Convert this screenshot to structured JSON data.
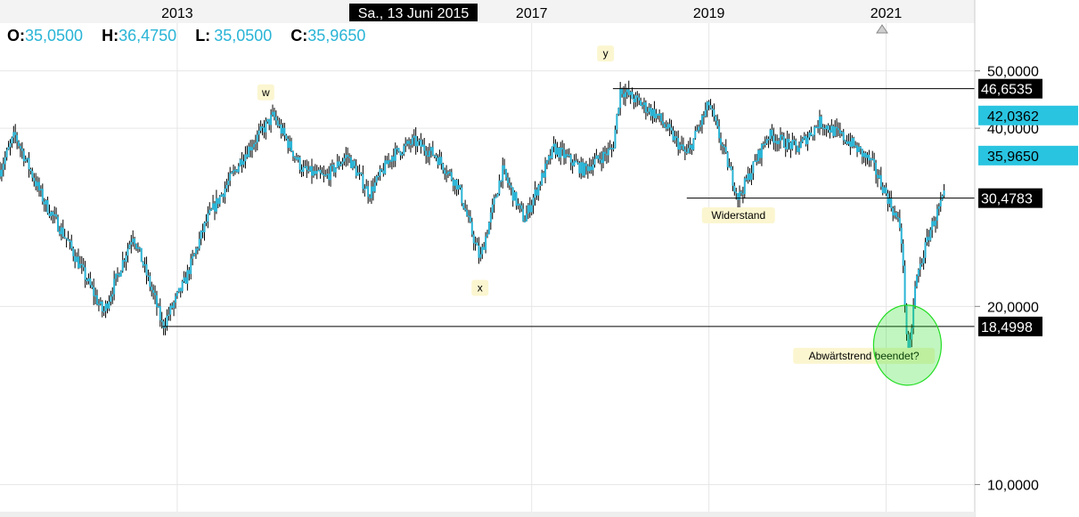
{
  "chart_data": {
    "type": "ohlc",
    "scale": "log",
    "ylim": [
      9.0,
      60.0
    ],
    "xlim": [
      "2011-01",
      "2021-12"
    ],
    "x_ticks": [
      "2013",
      "2017",
      "2019",
      "2021"
    ],
    "y_ticks": [
      "50,0000",
      "40,0000",
      "20,0000",
      "10,0000"
    ],
    "cursor_date_label": "Sa., 13 Juni 2015",
    "ohlc": {
      "o_label": "O:",
      "o_value": "35,0500",
      "h_label": "H:",
      "h_value": "36,4750",
      "l_label": "L:",
      "l_value": "35,0500",
      "c_label": "C:",
      "c_value": "35,9650"
    },
    "bar_color": "#29b4d6",
    "wick_color": "#000000",
    "price_path": [
      [
        "2011-01",
        34
      ],
      [
        "2011-03",
        39
      ],
      [
        "2011-07",
        30
      ],
      [
        "2011-10",
        26
      ],
      [
        "2012-03",
        19.5
      ],
      [
        "2012-07",
        26.5
      ],
      [
        "2012-10",
        20.5
      ],
      [
        "2012-11",
        18.5
      ],
      [
        "2013-02",
        22
      ],
      [
        "2013-05",
        28
      ],
      [
        "2013-10",
        36
      ],
      [
        "2014-02",
        42
      ],
      [
        "2014-06",
        34
      ],
      [
        "2014-09",
        33
      ],
      [
        "2014-12",
        36
      ],
      [
        "2015-03",
        31
      ],
      [
        "2015-06",
        35.9
      ],
      [
        "2015-09",
        38
      ],
      [
        "2015-12",
        36
      ],
      [
        "2016-03",
        32
      ],
      [
        "2016-06",
        24
      ],
      [
        "2016-09",
        34
      ],
      [
        "2016-12",
        28
      ],
      [
        "2017-04",
        37
      ],
      [
        "2017-08",
        34
      ],
      [
        "2017-12",
        37
      ],
      [
        "2018-01",
        46.6
      ],
      [
        "2018-06",
        42
      ],
      [
        "2018-10",
        36
      ],
      [
        "2019-01",
        44
      ],
      [
        "2019-05",
        30.5
      ],
      [
        "2019-09",
        39
      ],
      [
        "2020-01",
        37
      ],
      [
        "2020-04",
        41
      ],
      [
        "2020-08",
        38
      ],
      [
        "2020-11",
        35
      ],
      [
        "2021-01",
        31
      ],
      [
        "2021-03",
        27
      ],
      [
        "2021-04",
        16
      ],
      [
        "2021-05",
        22
      ],
      [
        "2021-07",
        27
      ],
      [
        "2021-09",
        31
      ]
    ],
    "levels": [
      {
        "id": "level-46",
        "value": 46.6535,
        "label": "46,6535",
        "from": "2017-12",
        "style": "dark"
      },
      {
        "id": "level-42",
        "value": 42.0362,
        "label": "42,0362",
        "from": null,
        "style": "cyan"
      },
      {
        "id": "level-36",
        "value": 35.965,
        "label": "35,9650",
        "from": null,
        "style": "cyan"
      },
      {
        "id": "level-30",
        "value": 30.4783,
        "label": "30,4783",
        "from": "2018-10",
        "style": "dark"
      },
      {
        "id": "level-18",
        "value": 18.4998,
        "label": "18,4998",
        "from": "2012-11",
        "style": "dark"
      }
    ],
    "annotations": [
      {
        "id": "annot-w",
        "text": "w",
        "date": "2014-01",
        "price": 46.0
      },
      {
        "id": "annot-x",
        "text": "x",
        "date": "2016-06",
        "price": 21.5
      },
      {
        "id": "annot-y",
        "text": "y",
        "date": "2017-11",
        "price": 53.5
      },
      {
        "id": "annot-widerstand",
        "text": "Widerstand",
        "date": "2019-05",
        "price": 28.5
      },
      {
        "id": "annot-abwaertstrend",
        "text": "Abwärtstrend beendet?",
        "date": "2020-10",
        "price": 16.5
      }
    ],
    "highlight_circle": {
      "date": "2021-04",
      "price": 17.2,
      "color": "#22dd22"
    },
    "grid": true
  }
}
